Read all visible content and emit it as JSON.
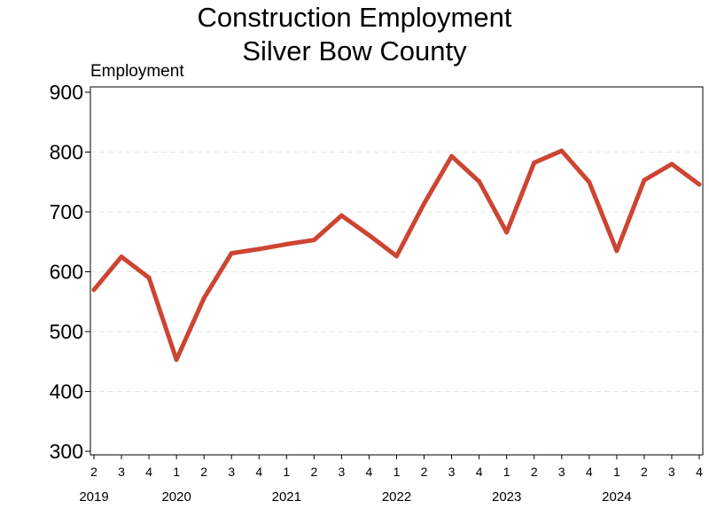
{
  "chart_data": {
    "type": "line",
    "title": [
      "Construction Employment",
      "Silver Bow County"
    ],
    "ylabel": "Employment",
    "ylim": [
      300,
      900
    ],
    "yticks": [
      300,
      400,
      500,
      600,
      700,
      800,
      900
    ],
    "grid": "horizontal-dashed",
    "series_color": "#cd4532",
    "x": [
      {
        "quarter": "2",
        "year": "2019",
        "value": 570
      },
      {
        "quarter": "3",
        "year": "",
        "value": 625
      },
      {
        "quarter": "4",
        "year": "",
        "value": 590
      },
      {
        "quarter": "1",
        "year": "2020",
        "value": 453
      },
      {
        "quarter": "2",
        "year": "",
        "value": 556
      },
      {
        "quarter": "3",
        "year": "",
        "value": 631
      },
      {
        "quarter": "4",
        "year": "",
        "value": 638
      },
      {
        "quarter": "1",
        "year": "2021",
        "value": 646
      },
      {
        "quarter": "2",
        "year": "",
        "value": 653
      },
      {
        "quarter": "3",
        "year": "",
        "value": 694
      },
      {
        "quarter": "4",
        "year": "",
        "value": 661
      },
      {
        "quarter": "1",
        "year": "2022",
        "value": 626
      },
      {
        "quarter": "2",
        "year": "",
        "value": 714
      },
      {
        "quarter": "3",
        "year": "",
        "value": 793
      },
      {
        "quarter": "4",
        "year": "",
        "value": 751
      },
      {
        "quarter": "1",
        "year": "2023",
        "value": 666
      },
      {
        "quarter": "2",
        "year": "",
        "value": 782
      },
      {
        "quarter": "3",
        "year": "",
        "value": 802
      },
      {
        "quarter": "4",
        "year": "",
        "value": 750
      },
      {
        "quarter": "1",
        "year": "2024",
        "value": 635
      },
      {
        "quarter": "2",
        "year": "",
        "value": 753
      },
      {
        "quarter": "3",
        "year": "",
        "value": 780
      },
      {
        "quarter": "4",
        "year": "",
        "value": 746
      }
    ]
  }
}
